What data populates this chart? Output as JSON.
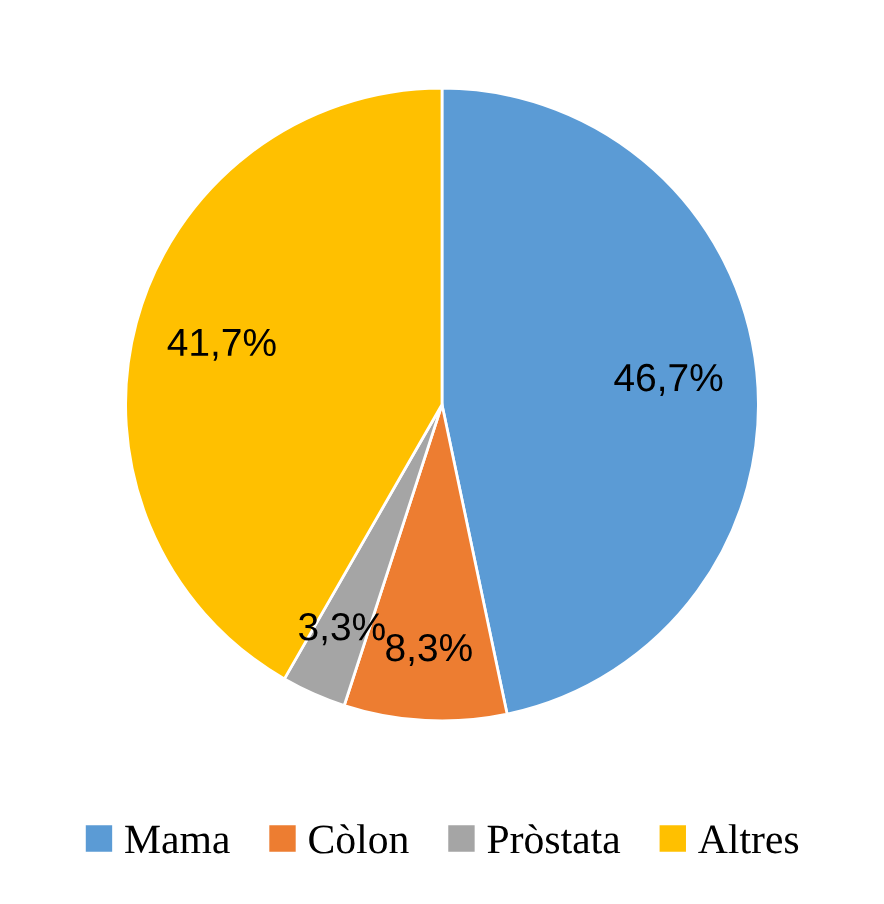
{
  "chart_data": {
    "type": "pie",
    "categories": [
      "Mama",
      "Còlon",
      "Pròstata",
      "Altres"
    ],
    "values": [
      46.7,
      8.3,
      3.3,
      41.7
    ],
    "colors": [
      "#5b9bd5",
      "#ed7d31",
      "#a5a5a5",
      "#ffc000"
    ],
    "value_labels": [
      "46,7%",
      "8,3%",
      "3,3%",
      "41,7%"
    ],
    "legend": "bottom"
  }
}
